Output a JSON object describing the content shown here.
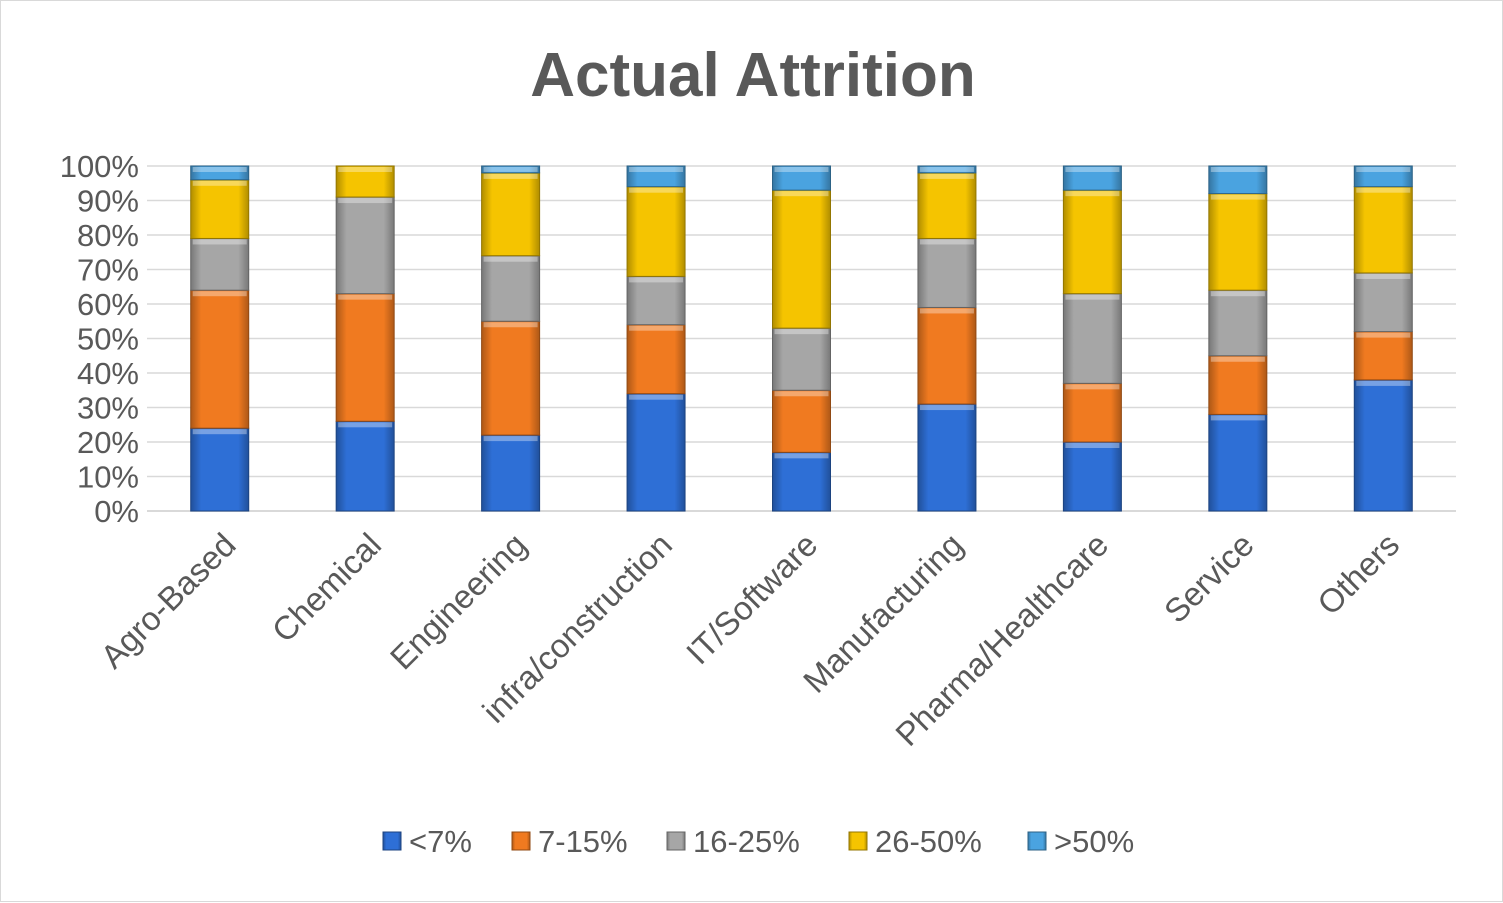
{
  "chart_data": {
    "type": "bar",
    "stacked": true,
    "percent_stacked": true,
    "title": "Actual Attrition",
    "xlabel": "",
    "ylabel": "",
    "ylim": [
      0,
      100
    ],
    "y_ticks": [
      "0%",
      "10%",
      "20%",
      "30%",
      "40%",
      "50%",
      "60%",
      "70%",
      "80%",
      "90%",
      "100%"
    ],
    "categories": [
      "Agro-Based",
      "Chemical",
      "Engineering",
      "infra/construction",
      "IT/Software",
      "Manufacturing",
      "Pharma/Healthcare",
      "Service",
      "Others"
    ],
    "series": [
      {
        "name": "<7%",
        "color": "#2e6fd6",
        "values": [
          24,
          26,
          22,
          34,
          17,
          31,
          20,
          28,
          38
        ]
      },
      {
        "name": "7-15%",
        "color": "#f07a20",
        "values": [
          40,
          37,
          33,
          20,
          18,
          28,
          17,
          17,
          14
        ]
      },
      {
        "name": "16-25%",
        "color": "#a6a6a6",
        "values": [
          15,
          28,
          19,
          14,
          18,
          20,
          26,
          19,
          17
        ]
      },
      {
        "name": "26-50%",
        "color": "#f5c400",
        "values": [
          17,
          9,
          24,
          26,
          40,
          19,
          30,
          28,
          25
        ]
      },
      {
        "name": ">50%",
        "color": "#4aa3e0",
        "values": [
          4,
          0,
          2,
          6,
          7,
          2,
          7,
          8,
          6
        ]
      }
    ],
    "grid": true,
    "legend_position": "bottom"
  }
}
